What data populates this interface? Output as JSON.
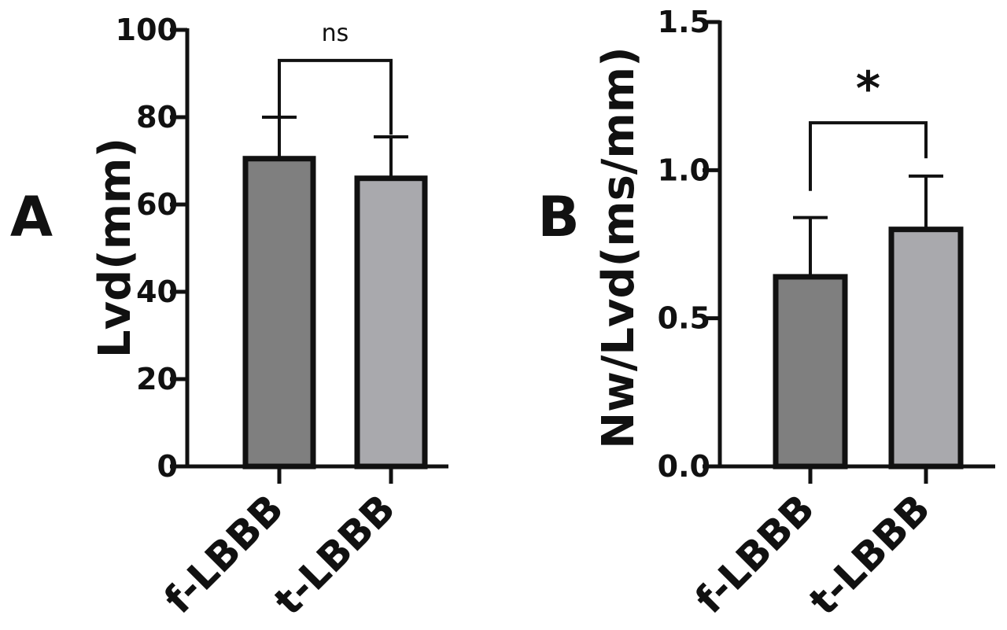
{
  "chart_data": [
    {
      "panel": "A",
      "type": "bar",
      "categories": [
        "f-LBBB",
        "t-LBBB"
      ],
      "values": [
        70.5,
        66
      ],
      "error_upper": [
        80,
        75.5
      ],
      "ylabel": "Lvd(mm)",
      "ylim": [
        0,
        100
      ],
      "yticks": [
        0,
        20,
        40,
        60,
        80,
        100
      ],
      "ytick_labels": [
        "0",
        "20",
        "40",
        "60",
        "80",
        "100"
      ],
      "bar_colors": [
        "#7f7f7f",
        "#a9a9ad"
      ],
      "significance": "ns",
      "bracket_bottom": [
        80,
        76
      ],
      "bracket_top": 93
    },
    {
      "panel": "B",
      "type": "bar",
      "categories": [
        "f-LBBB",
        "t-LBBB"
      ],
      "values": [
        0.64,
        0.8
      ],
      "error_upper": [
        0.84,
        0.98
      ],
      "ylabel": "Nw/Lvd(ms/mm)",
      "ylim": [
        0,
        1.5
      ],
      "yticks": [
        0,
        0.5,
        1.0,
        1.5
      ],
      "ytick_labels": [
        "0.0",
        "0.5",
        "1.0",
        "1.5"
      ],
      "bar_colors": [
        "#7f7f7f",
        "#a9a9ad"
      ],
      "significance": "*",
      "bracket_bottom": [
        0.93,
        1.04
      ],
      "bracket_top": 1.16
    }
  ]
}
